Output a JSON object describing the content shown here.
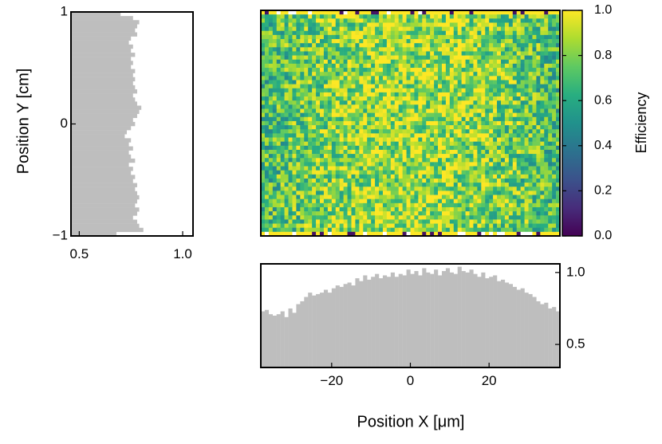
{
  "chart_data": [
    {
      "id": "efficiency-map",
      "type": "heatmap",
      "title": "",
      "xlabel": "Position X [μm]",
      "ylabel": "Position Y [cm]",
      "xlim": [
        -38,
        38
      ],
      "ylim": [
        -1,
        1
      ],
      "nx": 76,
      "ny": 55,
      "colormap": "viridis",
      "colorbar": {
        "label": "Efficiency",
        "vmin": 0.0,
        "vmax": 1.0,
        "ticks": [
          0.0,
          0.2,
          0.4,
          0.6,
          0.8,
          1.0
        ],
        "tick_labels": [
          "0.0",
          "0.2",
          "0.4",
          "0.6",
          "0.8",
          "1.0"
        ],
        "placement": "right"
      }
    },
    {
      "id": "y-projection",
      "type": "bar",
      "orientation": "horizontal",
      "position": "left",
      "xlim": [
        0.46,
        1.05
      ],
      "ylim": [
        -1,
        1
      ],
      "x_ticks": [
        0.5,
        1.0
      ],
      "x_tick_labels": [
        "0.5",
        "1.0"
      ],
      "y_ticks": [
        -1,
        0,
        1
      ],
      "y_tick_labels": [
        "−1",
        "0",
        "1"
      ],
      "color": "#bebebe",
      "values": [
        0.68,
        0.81,
        0.79,
        0.78,
        0.76,
        0.78,
        0.79,
        0.77,
        0.78,
        0.79,
        0.78,
        0.77,
        0.78,
        0.76,
        0.77,
        0.75,
        0.76,
        0.74,
        0.77,
        0.75,
        0.74,
        0.76,
        0.74,
        0.75,
        0.72,
        0.73,
        0.75,
        0.77,
        0.76,
        0.78,
        0.79,
        0.8,
        0.78,
        0.77,
        0.76,
        0.78,
        0.77,
        0.76,
        0.77,
        0.76,
        0.77,
        0.75,
        0.76,
        0.75,
        0.77,
        0.75,
        0.76,
        0.74,
        0.75,
        0.78,
        0.77,
        0.78,
        0.79,
        0.76,
        0.7
      ]
    },
    {
      "id": "x-projection",
      "type": "bar",
      "orientation": "vertical",
      "position": "bottom",
      "xlim": [
        -38,
        38
      ],
      "ylim": [
        0.34,
        1.06
      ],
      "x_ticks": [
        -20,
        0,
        20
      ],
      "x_tick_labels": [
        "−20",
        "0",
        "20"
      ],
      "y_ticks": [
        0.5,
        1.0
      ],
      "y_tick_labels": [
        "0.5",
        "1.0"
      ],
      "y_axis_side": "right",
      "color": "#bebebe",
      "values": [
        0.73,
        0.74,
        0.71,
        0.7,
        0.71,
        0.73,
        0.69,
        0.75,
        0.72,
        0.78,
        0.8,
        0.83,
        0.86,
        0.84,
        0.85,
        0.86,
        0.88,
        0.86,
        0.89,
        0.91,
        0.9,
        0.92,
        0.93,
        0.91,
        0.96,
        0.94,
        0.98,
        0.95,
        0.97,
        0.99,
        0.96,
        0.98,
        0.97,
        1.0,
        0.97,
        0.99,
        0.98,
        1.02,
        0.99,
        1.01,
        0.98,
        1.03,
        1.0,
        0.99,
        1.02,
        0.98,
        1.01,
        1.03,
        1.0,
        0.99,
        1.04,
        1.01,
        1.0,
        1.02,
        0.99,
        0.97,
        1.0,
        0.96,
        0.97,
        0.98,
        0.94,
        0.95,
        0.93,
        0.92,
        0.9,
        0.88,
        0.89,
        0.86,
        0.85,
        0.83,
        0.8,
        0.78,
        0.79,
        0.75,
        0.76,
        0.73
      ]
    }
  ]
}
